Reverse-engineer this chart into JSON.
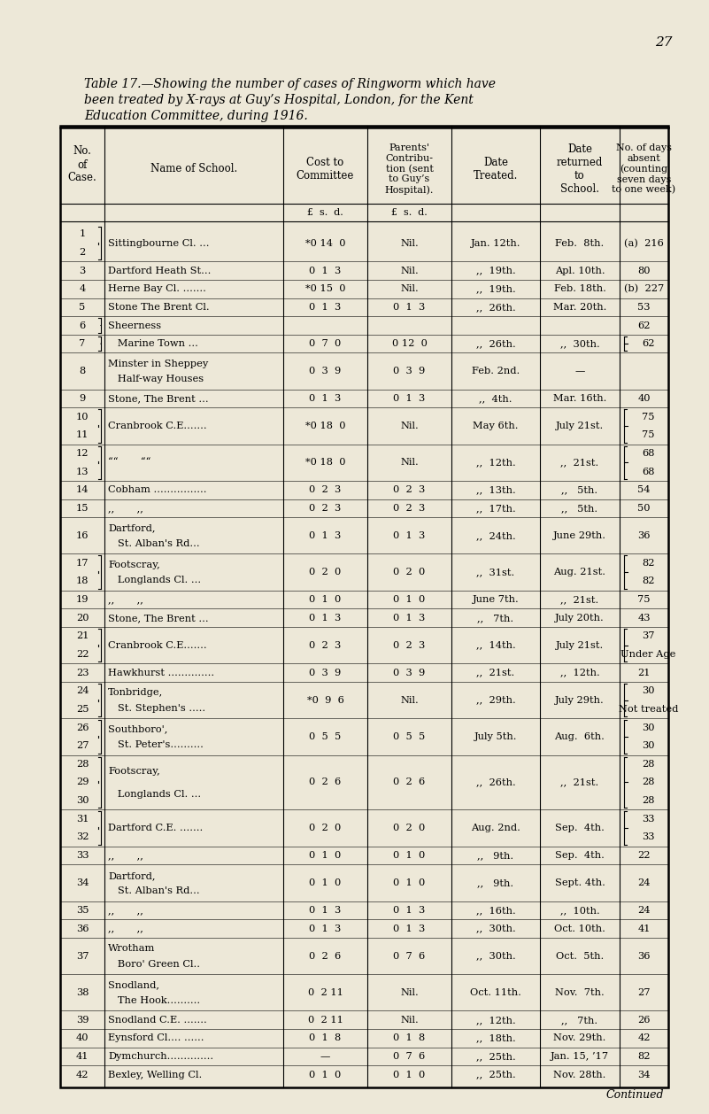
{
  "bg_color": "#ede8d8",
  "page_num": "27",
  "title_line1": "Table 17.—Showing the number of cases of Ringworm which have",
  "title_line2": "been treated by X-rays at Guy’s Hospital, London, for the Kent",
  "title_line3": "Education Committee, during 1916.",
  "rows": [
    {
      "nos": [
        "1",
        "2"
      ],
      "brace_nos": true,
      "school1": "Sittingbourne Cl. ...",
      "school2": "",
      "cost": "*0 14  0",
      "contrib": "Nil.",
      "dt": "Jan. 12th.",
      "dr": "Feb.  8th.",
      "days": [
        "(a)  216"
      ],
      "brace_days": false
    },
    {
      "nos": [
        "3"
      ],
      "brace_nos": false,
      "school1": "Dartford Heath St...",
      "school2": "",
      "cost": "0  1  3",
      "contrib": "Nil.",
      "dt": ",,  19th.",
      "dr": "Apl. 10th.",
      "days": [
        "80"
      ],
      "brace_days": false
    },
    {
      "nos": [
        "4"
      ],
      "brace_nos": false,
      "school1": "Herne Bay Cl. .......",
      "school2": "",
      "cost": "*0 15  0",
      "contrib": "Nil.",
      "dt": ",,  19th.",
      "dr": "Feb. 18th.",
      "days": [
        "(b)  227"
      ],
      "brace_days": false
    },
    {
      "nos": [
        "5"
      ],
      "brace_nos": false,
      "school1": "Stone The Brent Cl.",
      "school2": "",
      "cost": "0  1  3",
      "contrib": "0  1  3",
      "dt": ",,  26th.",
      "dr": "Mar. 20th.",
      "days": [
        "53"
      ],
      "brace_days": false
    },
    {
      "nos": [
        "6"
      ],
      "brace_nos": true,
      "school1": "Sheerness",
      "school2": "",
      "cost": "",
      "contrib": "",
      "dt": "",
      "dr": "",
      "days": [
        "62"
      ],
      "brace_days": false
    },
    {
      "nos": [
        "7"
      ],
      "brace_nos": true,
      "school1": "   Marine Town ...",
      "school2": "",
      "cost": "0  7  0",
      "contrib": "0 12  0",
      "dt": ",,  26th.",
      "dr": ",,  30th.",
      "days": [
        "62"
      ],
      "brace_days": true
    },
    {
      "nos": [
        "8"
      ],
      "brace_nos": false,
      "school1": "Minster in Sheppey",
      "school2": "   Half-way Houses",
      "cost": "0  3  9",
      "contrib": "0  3  9",
      "dt": "Feb. 2nd.",
      "dr": "—",
      "days": [],
      "brace_days": false
    },
    {
      "nos": [
        "9"
      ],
      "brace_nos": false,
      "school1": "Stone, The Brent ...",
      "school2": "",
      "cost": "0  1  3",
      "contrib": "0  1  3",
      "dt": ",,  4th.",
      "dr": "Mar. 16th.",
      "days": [
        "40"
      ],
      "brace_days": false
    },
    {
      "nos": [
        "10",
        "11"
      ],
      "brace_nos": true,
      "school1": "Cranbrook C.E.......",
      "school2": "",
      "cost": "*0 18  0",
      "contrib": "Nil.",
      "dt": "May 6th.",
      "dr": "July 21st.",
      "days": [
        "75",
        "75"
      ],
      "brace_days": true
    },
    {
      "nos": [
        "12",
        "13"
      ],
      "brace_nos": true,
      "school1": "““       ““",
      "school2": "",
      "cost": "*0 18  0",
      "contrib": "Nil.",
      "dt": ",,  12th.",
      "dr": ",,  21st.",
      "days": [
        "68",
        "68"
      ],
      "brace_days": true
    },
    {
      "nos": [
        "14"
      ],
      "brace_nos": false,
      "school1": "Cobham ................",
      "school2": "",
      "cost": "0  2  3",
      "contrib": "0  2  3",
      "dt": ",,  13th.",
      "dr": ",,   5th.",
      "days": [
        "54"
      ],
      "brace_days": false
    },
    {
      "nos": [
        "15"
      ],
      "brace_nos": false,
      "school1": ",,       ,,",
      "school2": "",
      "cost": "0  2  3",
      "contrib": "0  2  3",
      "dt": ",,  17th.",
      "dr": ",,   5th.",
      "days": [
        "50"
      ],
      "brace_days": false
    },
    {
      "nos": [
        "16"
      ],
      "brace_nos": false,
      "school1": "Dartford,",
      "school2": "   St. Alban's Rd...",
      "cost": "0  1  3",
      "contrib": "0  1  3",
      "dt": ",,  24th.",
      "dr": "June 29th.",
      "days": [
        "36"
      ],
      "brace_days": false
    },
    {
      "nos": [
        "17",
        "18"
      ],
      "brace_nos": true,
      "school1": "Footscray,",
      "school2": "   Longlands Cl. ...",
      "cost": "0  2  0",
      "contrib": "0  2  0",
      "dt": ",,  31st.",
      "dr": "Aug. 21st.",
      "days": [
        "82",
        "82"
      ],
      "brace_days": true
    },
    {
      "nos": [
        "19"
      ],
      "brace_nos": false,
      "school1": ",,       ,,",
      "school2": "",
      "cost": "0  1  0",
      "contrib": "0  1  0",
      "dt": "June 7th.",
      "dr": ",,  21st.",
      "days": [
        "75"
      ],
      "brace_days": false
    },
    {
      "nos": [
        "20"
      ],
      "brace_nos": false,
      "school1": "Stone, The Brent ...",
      "school2": "",
      "cost": "0  1  3",
      "contrib": "0  1  3",
      "dt": ",,   7th.",
      "dr": "July 20th.",
      "days": [
        "43"
      ],
      "brace_days": false
    },
    {
      "nos": [
        "21",
        "22"
      ],
      "brace_nos": true,
      "school1": "Cranbrook C.E.......",
      "school2": "",
      "cost": "0  2  3",
      "contrib": "0  2  3",
      "dt": ",,  14th.",
      "dr": "July 21st.",
      "days": [
        "37",
        "Under Age"
      ],
      "brace_days": true
    },
    {
      "nos": [
        "23"
      ],
      "brace_nos": false,
      "school1": "Hawkhurst ..............",
      "school2": "",
      "cost": "0  3  9",
      "contrib": "0  3  9",
      "dt": ",,  21st.",
      "dr": ",,  12th.",
      "days": [
        "21"
      ],
      "brace_days": false
    },
    {
      "nos": [
        "24",
        "25"
      ],
      "brace_nos": true,
      "school1": "Tonbridge,",
      "school2": "   St. Stephen's .....",
      "cost": "*0  9  6",
      "contrib": "Nil.",
      "dt": ",,  29th.",
      "dr": "July 29th.",
      "days": [
        "30",
        "Not treated"
      ],
      "brace_days": true
    },
    {
      "nos": [
        "26",
        "27"
      ],
      "brace_nos": true,
      "school1": "Southboro',",
      "school2": "   St. Peter's..........",
      "cost": "0  5  5",
      "contrib": "0  5  5",
      "dt": "July 5th.",
      "dr": "Aug.  6th.",
      "days": [
        "30",
        "30"
      ],
      "brace_days": true
    },
    {
      "nos": [
        "28",
        "29",
        "30"
      ],
      "brace_nos": true,
      "school1": "Footscray,",
      "school2": "   Longlands Cl. ...",
      "cost": "0  2  6",
      "contrib": "0  2  6",
      "dt": ",,  26th.",
      "dr": ",,  21st.",
      "days": [
        "28",
        "28",
        "28"
      ],
      "brace_days": true
    },
    {
      "nos": [
        "31",
        "32"
      ],
      "brace_nos": true,
      "school1": "Dartford C.E. .......",
      "school2": "",
      "cost": "0  2  0",
      "contrib": "0  2  0",
      "dt": "Aug. 2nd.",
      "dr": "Sep.  4th.",
      "days": [
        "33",
        "33"
      ],
      "brace_days": true
    },
    {
      "nos": [
        "33"
      ],
      "brace_nos": false,
      "school1": ",,       ,,",
      "school2": "",
      "cost": "0  1  0",
      "contrib": "0  1  0",
      "dt": ",,   9th.",
      "dr": "Sep.  4th.",
      "days": [
        "22"
      ],
      "brace_days": false
    },
    {
      "nos": [
        "34"
      ],
      "brace_nos": false,
      "school1": "Dartford,",
      "school2": "   St. Alban's Rd...",
      "cost": "0  1  0",
      "contrib": "0  1  0",
      "dt": ",,   9th.",
      "dr": "Sept. 4th.",
      "days": [
        "24"
      ],
      "brace_days": false
    },
    {
      "nos": [
        "35"
      ],
      "brace_nos": false,
      "school1": ",,       ,,",
      "school2": "",
      "cost": "0  1  3",
      "contrib": "0  1  3",
      "dt": ",,  16th.",
      "dr": ",,  10th.",
      "days": [
        "24"
      ],
      "brace_days": false
    },
    {
      "nos": [
        "36"
      ],
      "brace_nos": false,
      "school1": ",,       ,,",
      "school2": "",
      "cost": "0  1  3",
      "contrib": "0  1  3",
      "dt": ",,  30th.",
      "dr": "Oct. 10th.",
      "days": [
        "41"
      ],
      "brace_days": false
    },
    {
      "nos": [
        "37"
      ],
      "brace_nos": false,
      "school1": "Wrotham",
      "school2": "   Boro' Green Cl..",
      "cost": "0  2  6",
      "contrib": "0  7  6",
      "dt": ",,  30th.",
      "dr": "Oct.  5th.",
      "days": [
        "36"
      ],
      "brace_days": false
    },
    {
      "nos": [
        "38"
      ],
      "brace_nos": false,
      "school1": "Snodland,",
      "school2": "   The Hook..........",
      "cost": "0  2 11",
      "contrib": "Nil.",
      "dt": "Oct. 11th.",
      "dr": "Nov.  7th.",
      "days": [
        "27"
      ],
      "brace_days": false
    },
    {
      "nos": [
        "39"
      ],
      "brace_nos": false,
      "school1": "Snodland C.E. .......",
      "school2": "",
      "cost": "0  2 11",
      "contrib": "Nil.",
      "dt": ",,  12th.",
      "dr": ",,   7th.",
      "days": [
        "26"
      ],
      "brace_days": false
    },
    {
      "nos": [
        "40"
      ],
      "brace_nos": false,
      "school1": "Eynsford Cl.... ......",
      "school2": "",
      "cost": "0  1  8",
      "contrib": "0  1  8",
      "dt": ",,  18th.",
      "dr": "Nov. 29th.",
      "days": [
        "42"
      ],
      "brace_days": false
    },
    {
      "nos": [
        "41"
      ],
      "brace_nos": false,
      "school1": "Dymchurch..............",
      "school2": "",
      "cost": "—",
      "contrib": "0  7  6",
      "dt": ",,  25th.",
      "dr": "Jan. 15, ’17",
      "days": [
        "82"
      ],
      "brace_days": false
    },
    {
      "nos": [
        "42"
      ],
      "brace_nos": false,
      "school1": "Bexley, Welling Cl.",
      "school2": "",
      "cost": "0  1  0",
      "contrib": "0  1  0",
      "dt": ",,  25th.",
      "dr": "Nov. 28th.",
      "days": [
        "34"
      ],
      "brace_days": false
    }
  ]
}
